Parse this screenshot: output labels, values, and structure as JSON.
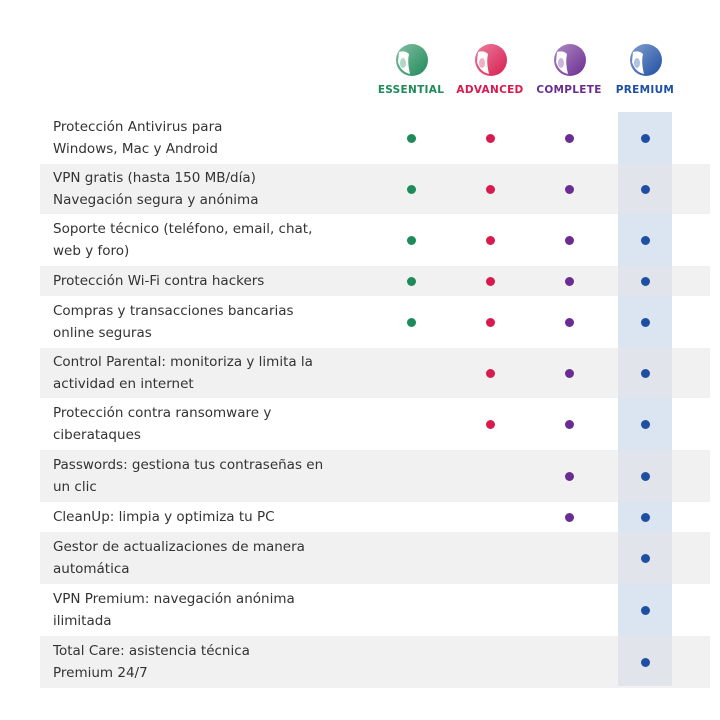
{
  "plans": [
    {
      "name": "ESSENTIAL",
      "color": "#1f8a5a",
      "logo-icon": "shield-moon-logo"
    },
    {
      "name": "ADVANCED",
      "color": "#d81b4f",
      "logo-icon": "shield-moon-logo"
    },
    {
      "name": "COMPLETE",
      "color": "#6a2c91",
      "logo-icon": "shield-moon-logo"
    },
    {
      "name": "PREMIUM",
      "color": "#1e4fa3",
      "logo-icon": "shield-moon-logo"
    }
  ],
  "features": [
    {
      "label": "Protección Antivirus para\nWindows, Mac y Android",
      "included": [
        true,
        true,
        true,
        true
      ]
    },
    {
      "label": "VPN gratis (hasta 150 MB/día)\nNavegación segura y anónima",
      "included": [
        true,
        true,
        true,
        true
      ]
    },
    {
      "label": "Soporte técnico (teléfono, email, chat,\nweb y foro)",
      "included": [
        true,
        true,
        true,
        true
      ]
    },
    {
      "label": "Protección Wi-Fi contra hackers",
      "included": [
        true,
        true,
        true,
        true
      ]
    },
    {
      "label": "Compras y transacciones bancarias\nonline seguras",
      "included": [
        true,
        true,
        true,
        true
      ]
    },
    {
      "label": "Control Parental: monitoriza y limita la\nactividad en internet",
      "included": [
        false,
        true,
        true,
        true
      ]
    },
    {
      "label": "Protección contra ransomware y\nciberataques",
      "included": [
        false,
        true,
        true,
        true
      ]
    },
    {
      "label": "Passwords: gestiona tus contraseñas en\nun clic",
      "included": [
        false,
        false,
        true,
        true
      ]
    },
    {
      "label": "CleanUp: limpia y optimiza tu PC",
      "included": [
        false,
        false,
        true,
        true
      ]
    },
    {
      "label": "Gestor de actualizaciones de manera\nautomática",
      "included": [
        false,
        false,
        false,
        true
      ]
    },
    {
      "label": "VPN Premium: navegación anónima\nilimitada",
      "included": [
        false,
        false,
        false,
        true
      ]
    },
    {
      "label": "Total Care: asistencia técnica\nPremium 24/7",
      "included": [
        false,
        false,
        false,
        true
      ]
    }
  ]
}
